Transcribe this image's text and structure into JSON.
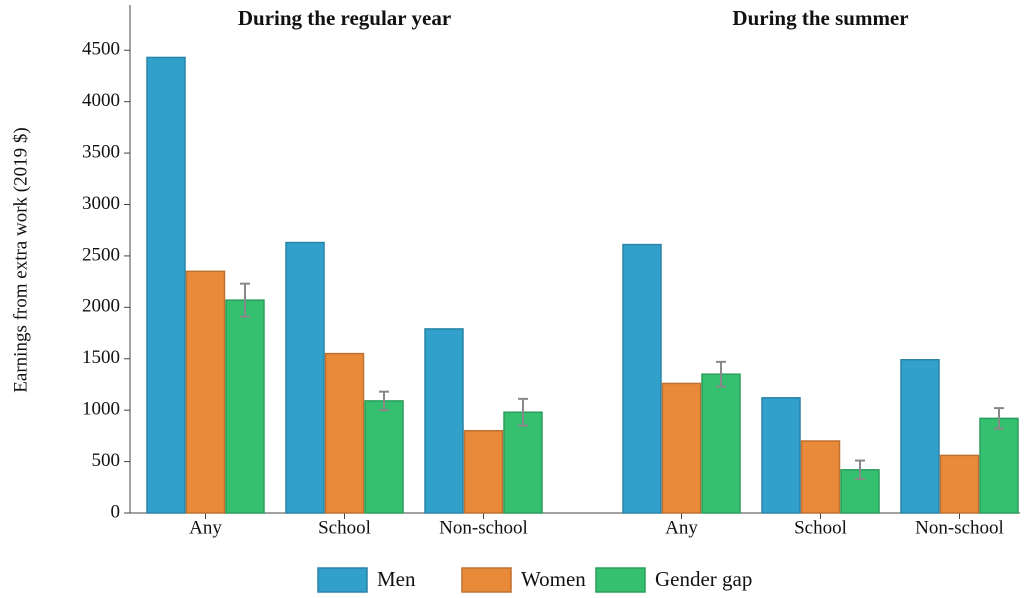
{
  "chart_data": {
    "type": "bar",
    "ylabel": "Earnings from extra work (2019 $)",
    "ylim": [
      0,
      4940
    ],
    "yticks": [
      0,
      500,
      1000,
      1500,
      2000,
      2500,
      3000,
      3500,
      4000,
      4500
    ],
    "series": [
      {
        "name": "Men",
        "color": "#31a1cc"
      },
      {
        "name": "Women",
        "color": "#e98a3b"
      },
      {
        "name": "Gender gap",
        "color": "#35c06f"
      }
    ],
    "panels": [
      {
        "title": "During the regular year",
        "categories": [
          "Any",
          "School",
          "Non-school"
        ],
        "series": [
          {
            "values": [
              4430,
              2630,
              1790
            ]
          },
          {
            "values": [
              2350,
              1550,
              800
            ]
          },
          {
            "values": [
              2070,
              1090,
              980
            ],
            "errors": [
              160,
              90,
              130
            ]
          }
        ]
      },
      {
        "title": "During the summer",
        "categories": [
          "Any",
          "School",
          "Non-school"
        ],
        "series": [
          {
            "values": [
              2610,
              1120,
              1490
            ]
          },
          {
            "values": [
              1260,
              700,
              560
            ]
          },
          {
            "values": [
              1350,
              420,
              920
            ],
            "errors": [
              120,
              90,
              100
            ]
          }
        ]
      }
    ]
  }
}
